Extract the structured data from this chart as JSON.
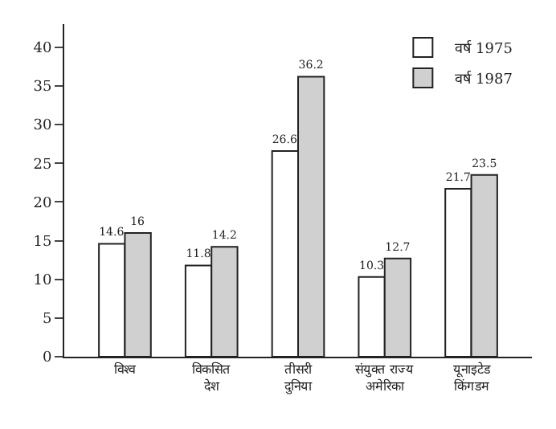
{
  "chart_data": {
    "type": "bar",
    "categories": [
      "विश्व",
      "विकसित\nदेश",
      "तीसरी\nदुनिया",
      "संयुक्त राज्य\nअमेरिका",
      "यूनाइटेड\nकिंगडम"
    ],
    "series": [
      {
        "name": "वर्ष 1975",
        "color": "#ffffff",
        "values": [
          14.6,
          11.8,
          26.6,
          10.3,
          21.7
        ]
      },
      {
        "name": "वर्ष 1987",
        "color": "#d0d0d0",
        "values": [
          16,
          14.2,
          36.2,
          12.7,
          23.5
        ]
      }
    ],
    "ylim": [
      0,
      43
    ],
    "yticks": [
      0,
      5,
      10,
      15,
      20,
      25,
      30,
      35,
      40
    ],
    "data_labels": true,
    "legend": "top right"
  }
}
